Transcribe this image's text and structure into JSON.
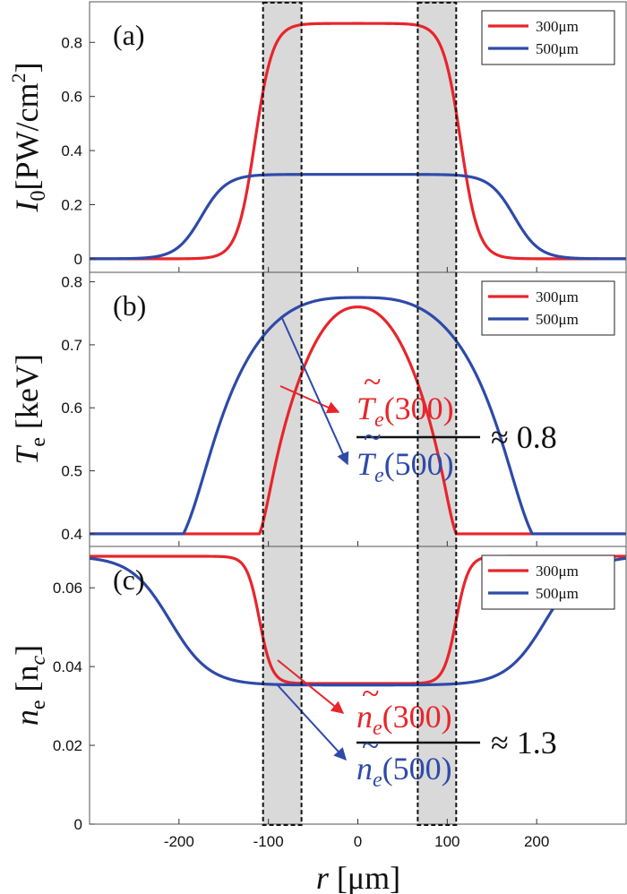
{
  "chart_data": [
    {
      "type": "line",
      "panel_label": "(a)",
      "ylabel_main": "I",
      "ylabel_sub": "0",
      "ylabel_rest": "[PW/cm",
      "ylabel_sup": "2",
      "ylabel_end": "]",
      "xlim": [
        -300,
        300
      ],
      "ylim": [
        -0.05,
        0.95
      ],
      "yticks": [
        0,
        0.2,
        0.4,
        0.6,
        0.8
      ],
      "ytick_labels": [
        "0",
        "0.2",
        "0.4",
        "0.6",
        "0.8"
      ],
      "legend_position": "top-right",
      "series": [
        {
          "name": "300μm",
          "color": "#e8252b",
          "kind": "supergauss",
          "base": 0,
          "amp": 0.87,
          "half_width": 115,
          "edge": 10,
          "power": 2
        },
        {
          "name": "500μm",
          "color": "#2e4aa8",
          "kind": "supergauss",
          "base": 0,
          "amp": 0.312,
          "half_width": 175,
          "edge": 14,
          "power": 2
        }
      ]
    },
    {
      "type": "line",
      "panel_label": "(b)",
      "ylabel_main": "T",
      "ylabel_sub": "e",
      "ylabel_rest": " [keV]",
      "xlim": [
        -300,
        300
      ],
      "ylim": [
        0.38,
        0.815
      ],
      "yticks": [
        0.4,
        0.5,
        0.6,
        0.7,
        0.8
      ],
      "ytick_labels": [
        "0.4",
        "0.5",
        "0.6",
        "0.7",
        "0.8"
      ],
      "legend_position": "top-right",
      "series": [
        {
          "name": "300μm",
          "color": "#e8252b",
          "kind": "dome",
          "base": 0.4,
          "peak": 0.76,
          "half_width": 110,
          "dome_power": 2.2,
          "edge": 6
        },
        {
          "name": "500μm",
          "color": "#2e4aa8",
          "kind": "dome",
          "base": 0.4,
          "peak": 0.775,
          "half_width": 195,
          "dome_power": 3,
          "edge": 16
        }
      ],
      "annotation": {
        "numerator": "300",
        "denominator": "500",
        "approx_symbol": "≈",
        "approx_value": "0.8"
      }
    },
    {
      "type": "line",
      "panel_label": "(c)",
      "ylabel_main": "n",
      "ylabel_sub": "e",
      "ylabel_rest": " [n",
      "ylabel_sub2": "c",
      "ylabel_end": "]",
      "xlim": [
        -300,
        300
      ],
      "ylim": [
        0,
        0.0705
      ],
      "yticks": [
        0,
        0.02,
        0.04,
        0.06
      ],
      "ytick_labels": [
        "0",
        "0.02",
        "0.04",
        "0.06"
      ],
      "xticks": [
        -200,
        -100,
        0,
        100,
        200
      ],
      "xtick_labels": [
        "-200",
        "-100",
        "0",
        "100",
        "200"
      ],
      "xlabel_main": "r",
      "xlabel_rest": " [μm]",
      "legend_position": "top-right",
      "series": [
        {
          "name": "300μm",
          "color": "#e8252b",
          "kind": "well",
          "base": 0.068,
          "depth_value": 0.0357,
          "half_width": 110,
          "edge": 7
        },
        {
          "name": "500μm",
          "color": "#2e4aa8",
          "kind": "well",
          "base": 0.068,
          "depth_value": 0.0353,
          "half_width": 210,
          "edge": 22
        }
      ],
      "annotation": {
        "numerator": "300",
        "denominator": "500",
        "approx_symbol": "≈",
        "approx_value": "1.3"
      }
    }
  ],
  "colors": {
    "red": "#e8252b",
    "blue": "#2e4aa8",
    "shade": "#d9d9d9"
  },
  "shaded_regions": [
    [
      -106,
      -63
    ],
    [
      67,
      110
    ]
  ]
}
